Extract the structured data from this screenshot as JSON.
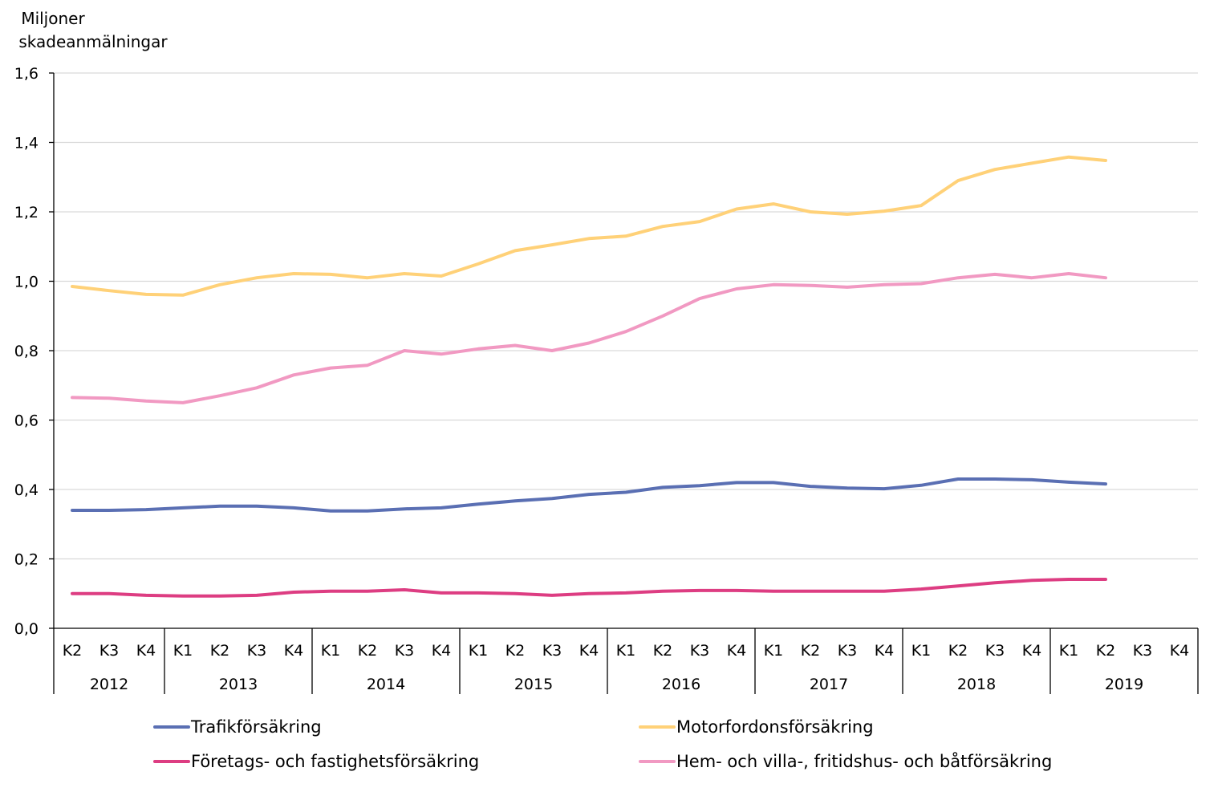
{
  "chart_data": {
    "type": "line",
    "ylabel": "Miljoner skadeanmälningar",
    "ylabel_lines": [
      "Miljoner",
      "skadeanmälningar"
    ],
    "ylim": [
      0,
      1.6
    ],
    "y_ticks": [
      "0,0",
      "0,2",
      "0,4",
      "0,6",
      "0,8",
      "1,0",
      "1,2",
      "1,4",
      "1,6"
    ],
    "grid": true,
    "legend_position": "bottom",
    "years": [
      {
        "label": "2012",
        "quarters": [
          "K2",
          "K3",
          "K4"
        ]
      },
      {
        "label": "2013",
        "quarters": [
          "K1",
          "K2",
          "K3",
          "K4"
        ]
      },
      {
        "label": "2014",
        "quarters": [
          "K1",
          "K2",
          "K3",
          "K4"
        ]
      },
      {
        "label": "2015",
        "quarters": [
          "K1",
          "K2",
          "K3",
          "K4"
        ]
      },
      {
        "label": "2016",
        "quarters": [
          "K1",
          "K2",
          "K3",
          "K4"
        ]
      },
      {
        "label": "2017",
        "quarters": [
          "K1",
          "K2",
          "K3",
          "K4"
        ]
      },
      {
        "label": "2018",
        "quarters": [
          "K1",
          "K2",
          "K3",
          "K4"
        ]
      },
      {
        "label": "2019",
        "quarters": [
          "K1",
          "K2",
          "K3",
          "K4"
        ]
      }
    ],
    "series": [
      {
        "name": "Trafikförsäkring",
        "color": "#5a6fb3",
        "values": [
          0.34,
          0.34,
          0.342,
          0.347,
          0.352,
          0.352,
          0.347,
          0.338,
          0.338,
          0.344,
          0.347,
          0.358,
          0.367,
          0.374,
          0.386,
          0.392,
          0.406,
          0.411,
          0.42,
          0.42,
          0.409,
          0.404,
          0.402,
          0.412,
          0.43,
          0.43,
          0.428,
          0.421,
          0.416
        ]
      },
      {
        "name": "Motorfordonsförsäkring",
        "color": "#ffd178",
        "values": [
          0.985,
          0.973,
          0.962,
          0.96,
          0.99,
          1.01,
          1.022,
          1.02,
          1.01,
          1.022,
          1.015,
          1.05,
          1.088,
          1.105,
          1.123,
          1.13,
          1.158,
          1.172,
          1.208,
          1.223,
          1.2,
          1.193,
          1.202,
          1.218,
          1.29,
          1.322,
          1.34,
          1.358,
          1.348
        ]
      },
      {
        "name": "Företags- och fastighetsförsäkring",
        "color": "#dd3d82",
        "values": [
          0.1,
          0.1,
          0.095,
          0.093,
          0.093,
          0.095,
          0.104,
          0.107,
          0.107,
          0.111,
          0.102,
          0.102,
          0.1,
          0.095,
          0.1,
          0.102,
          0.107,
          0.109,
          0.109,
          0.107,
          0.107,
          0.107,
          0.107,
          0.113,
          0.122,
          0.131,
          0.138,
          0.141,
          0.141
        ]
      },
      {
        "name": "Hem- och villa-, fritidshus- och båtförsäkring",
        "color": "#f199c2",
        "values": [
          0.665,
          0.663,
          0.655,
          0.65,
          0.67,
          0.693,
          0.73,
          0.75,
          0.758,
          0.8,
          0.79,
          0.805,
          0.815,
          0.8,
          0.822,
          0.855,
          0.9,
          0.95,
          0.978,
          0.99,
          0.988,
          0.983,
          0.99,
          0.993,
          1.01,
          1.02,
          1.01,
          1.022,
          1.01
        ]
      }
    ]
  }
}
